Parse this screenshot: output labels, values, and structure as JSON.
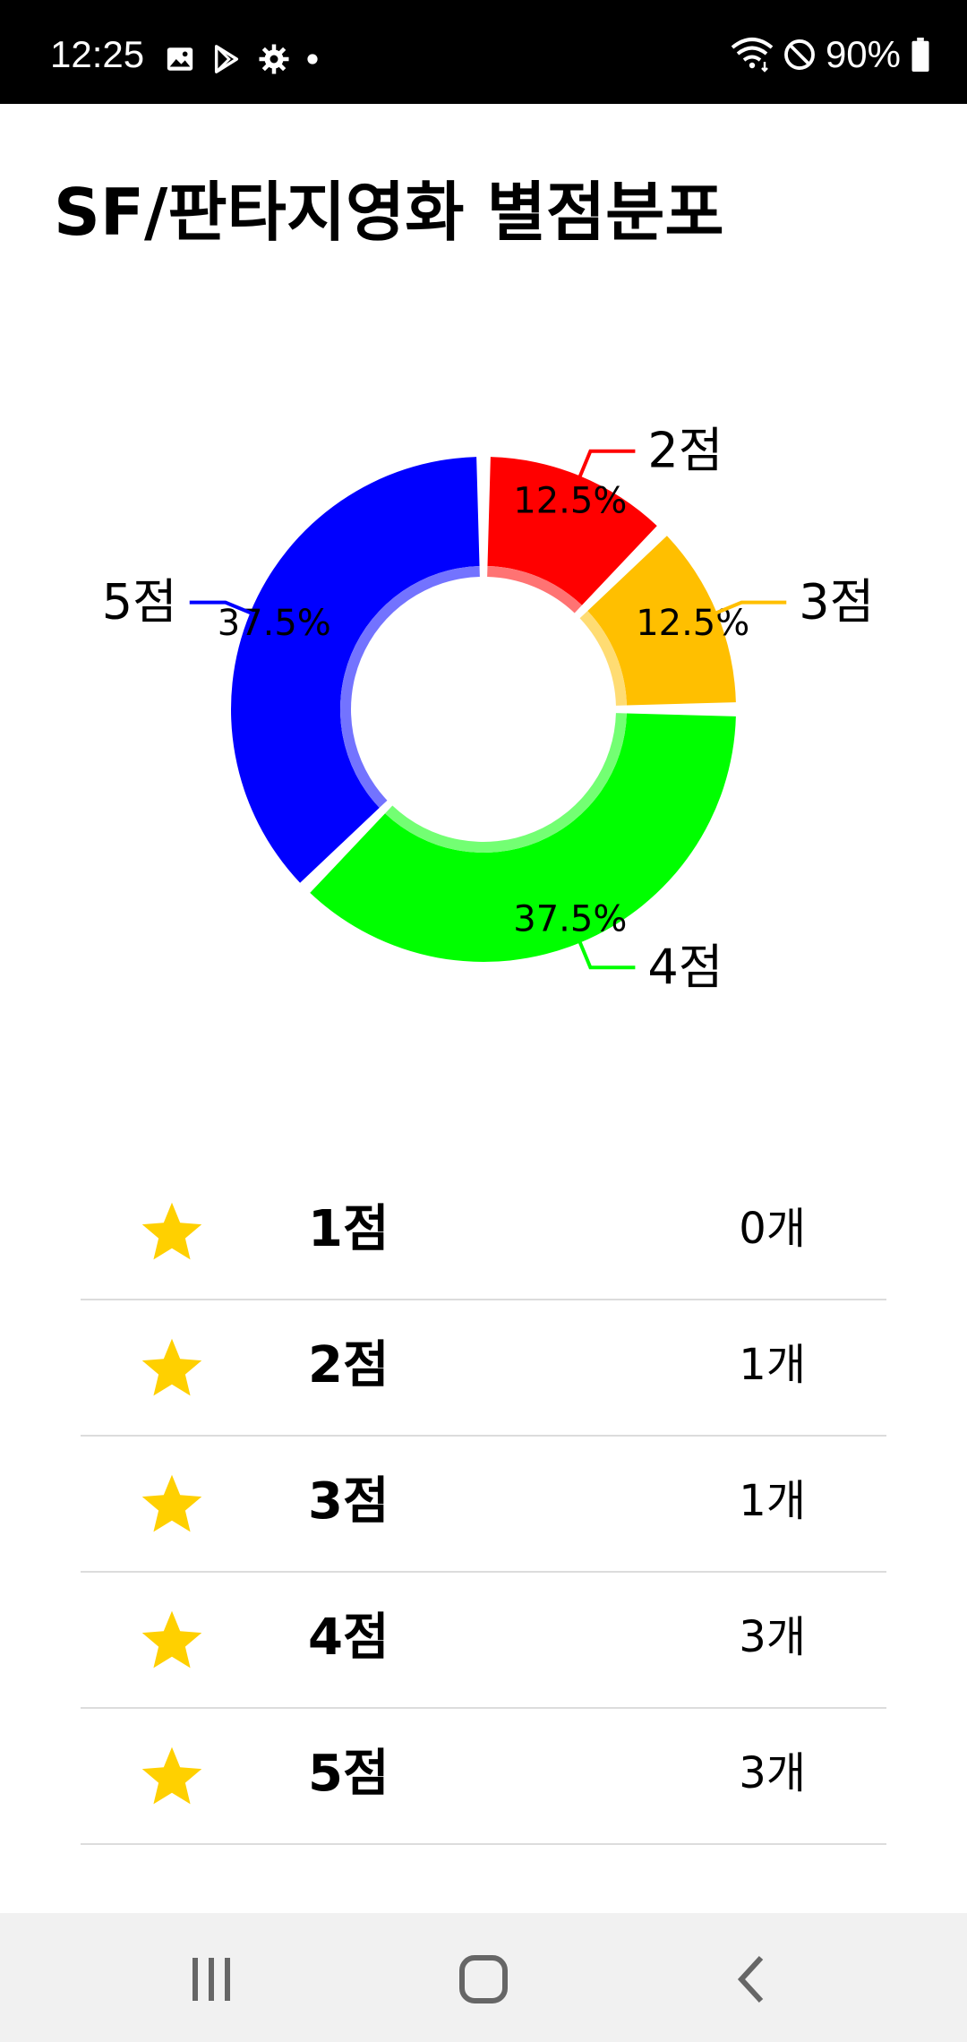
{
  "status_bar": {
    "time": "12:25",
    "left_icons": [
      "image-icon",
      "play-store-icon",
      "settings-icon",
      "dot-icon"
    ],
    "battery": "90%",
    "right_icons": [
      "wifi-icon",
      "do-not-disturb-icon",
      "battery-icon"
    ]
  },
  "page": {
    "title": "SF/판타지영화 별점분포"
  },
  "chart_data": {
    "type": "pie",
    "title": "",
    "style": "donut",
    "categories": [
      "2점",
      "3점",
      "4점",
      "5점"
    ],
    "values": [
      12.5,
      12.5,
      37.5,
      37.5
    ],
    "value_labels": [
      "12.5%",
      "12.5%",
      "37.5%",
      "37.5%"
    ],
    "colors": [
      "#ff0000",
      "#ffbf00",
      "#00ff00",
      "#0000ff"
    ],
    "unit": "%"
  },
  "ratings": [
    {
      "label": "1점",
      "count": "0개"
    },
    {
      "label": "2점",
      "count": "1개"
    },
    {
      "label": "3점",
      "count": "1개"
    },
    {
      "label": "4점",
      "count": "3개"
    },
    {
      "label": "5점",
      "count": "3개"
    }
  ],
  "colors": {
    "star": "#ffd000",
    "divider": "#dcdcdc",
    "status_bar": "#000000",
    "nav_bar": "#f1f1f1"
  },
  "nav_bar": {
    "icons": [
      "recent-apps-icon",
      "home-icon",
      "back-icon"
    ]
  }
}
